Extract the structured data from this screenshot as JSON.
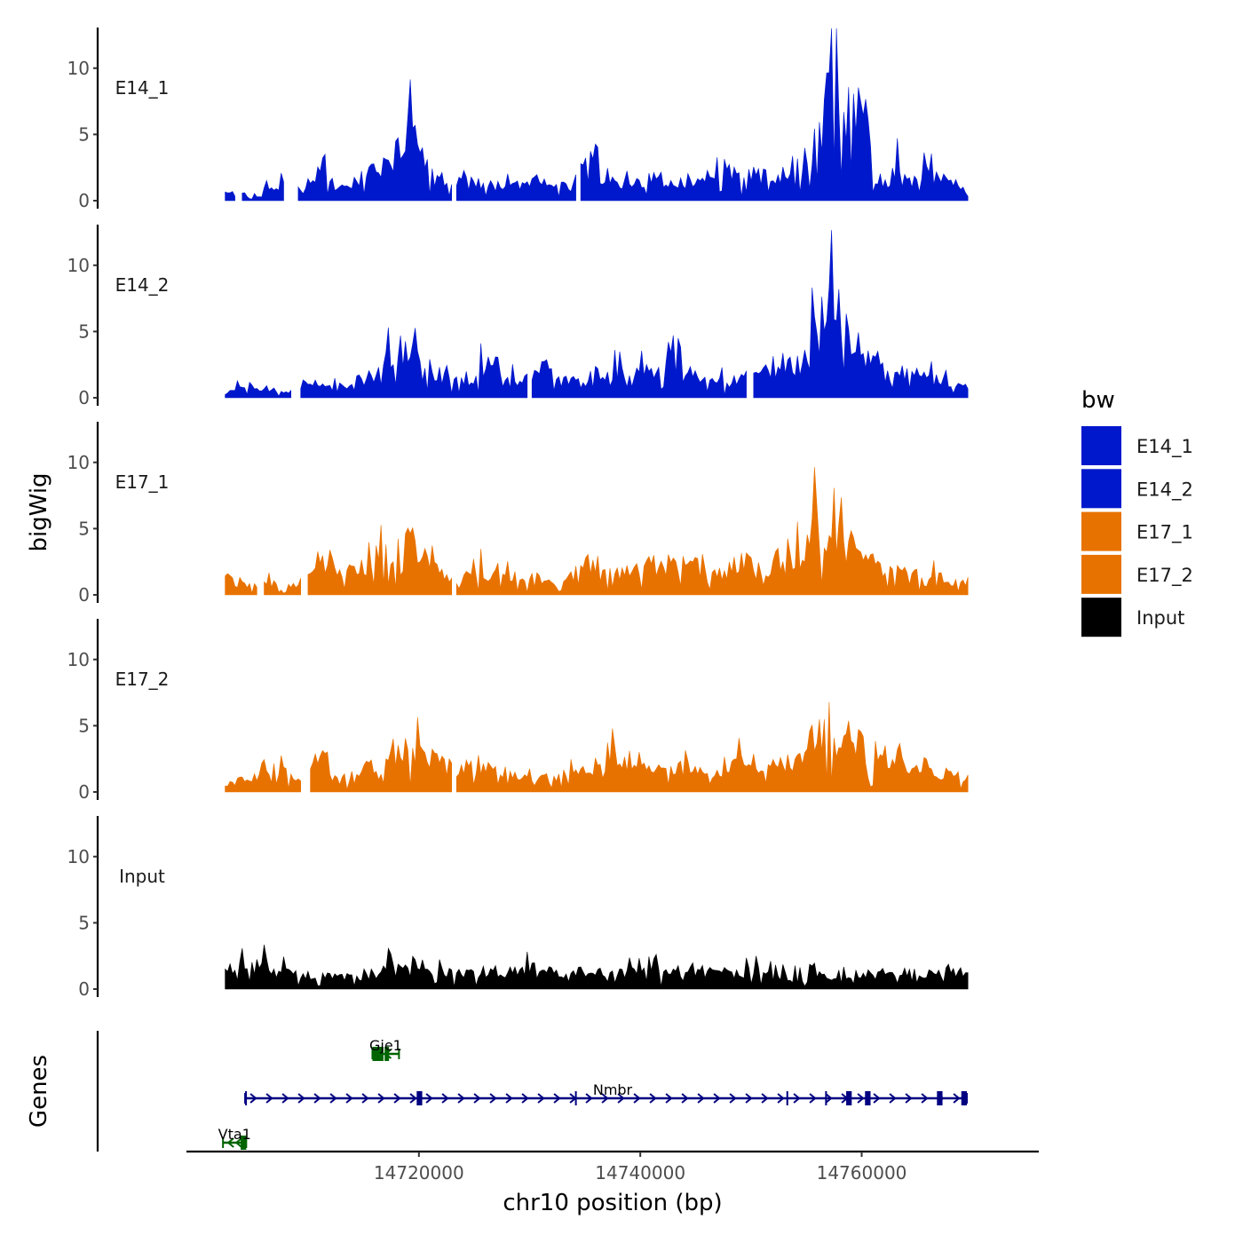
{
  "chart_data": {
    "type": "area",
    "title": "",
    "ylabel": "bigWig",
    "genes_label": "Genes",
    "xlabel": "chr10 position (bp)",
    "xlim": [
      14699000,
      14776000
    ],
    "ylim": [
      0,
      13
    ],
    "x_ticks": [
      14720000,
      14740000,
      14760000
    ],
    "x_tick_labels": [
      "14720000",
      "14740000",
      "14760000"
    ],
    "y_ticks": [
      0,
      5,
      10
    ],
    "y_tick_labels": [
      "0",
      "5",
      "10"
    ],
    "signal_range": [
      14702500,
      14769800
    ],
    "legend": {
      "title": "bw",
      "position": "right",
      "entries": [
        {
          "label": "E14_1",
          "color": "#0018CC"
        },
        {
          "label": "E14_2",
          "color": "#0018CC"
        },
        {
          "label": "E17_1",
          "color": "#E87200"
        },
        {
          "label": "E17_2",
          "color": "#E87200"
        },
        {
          "label": "Input",
          "color": "#000000"
        }
      ]
    },
    "tracks": [
      {
        "name": "E14_1",
        "color": "#0018CC",
        "gaps": [
          [
            14703500,
            14704000
          ],
          [
            14707800,
            14709000
          ],
          [
            14723000,
            14723300
          ],
          [
            14734300,
            14734600
          ]
        ],
        "anchors": [
          [
            14702500,
            0.6
          ],
          [
            14704500,
            0.5
          ],
          [
            14705800,
            1.0
          ],
          [
            14706600,
            1.5
          ],
          [
            14708500,
            1.2
          ],
          [
            14709500,
            0.8
          ],
          [
            14710700,
            1.5
          ],
          [
            14711300,
            4.1
          ],
          [
            14712500,
            0.8
          ],
          [
            14714300,
            1.5
          ],
          [
            14715500,
            2.2
          ],
          [
            14716700,
            3.0
          ],
          [
            14718000,
            4.0
          ],
          [
            14719200,
            5.4
          ],
          [
            14720500,
            3.1
          ],
          [
            14721700,
            2.5
          ],
          [
            14722800,
            1.3
          ],
          [
            14723800,
            2.0
          ],
          [
            14725500,
            1.4
          ],
          [
            14727000,
            1.2
          ],
          [
            14729000,
            1.5
          ],
          [
            14730800,
            1.8
          ],
          [
            14732200,
            1.5
          ],
          [
            14734000,
            1.2
          ],
          [
            14735000,
            3.5
          ],
          [
            14737000,
            1.5
          ],
          [
            14739000,
            1.4
          ],
          [
            14741000,
            2.0
          ],
          [
            14743000,
            1.4
          ],
          [
            14745000,
            1.8
          ],
          [
            14746500,
            3.0
          ],
          [
            14748000,
            2.5
          ],
          [
            14750500,
            2.0
          ],
          [
            14752500,
            1.8
          ],
          [
            14754500,
            3.5
          ],
          [
            14756000,
            5.5
          ],
          [
            14756600,
            6.8
          ],
          [
            14757300,
            13.0
          ],
          [
            14758000,
            9.6
          ],
          [
            14758700,
            7.8
          ],
          [
            14759300,
            6.5
          ],
          [
            14760300,
            9.0
          ],
          [
            14761100,
            2.0
          ],
          [
            14762300,
            1.5
          ],
          [
            14763200,
            3.1
          ],
          [
            14764500,
            1.5
          ],
          [
            14766000,
            2.4
          ],
          [
            14767500,
            1.6
          ],
          [
            14769000,
            1.2
          ],
          [
            14769800,
            0.9
          ]
        ]
      },
      {
        "name": "E14_2",
        "color": "#0018CC",
        "gaps": [
          [
            14708500,
            14709200
          ],
          [
            14729800,
            14730100
          ],
          [
            14749800,
            14750200
          ]
        ],
        "anchors": [
          [
            14702500,
            0.6
          ],
          [
            14704500,
            1.0
          ],
          [
            14706500,
            0.8
          ],
          [
            14708000,
            0.4
          ],
          [
            14710000,
            1.3
          ],
          [
            14711500,
            0.8
          ],
          [
            14713500,
            1.1
          ],
          [
            14715000,
            1.6
          ],
          [
            14716500,
            2.3
          ],
          [
            14718000,
            4.0
          ],
          [
            14719500,
            3.5
          ],
          [
            14720800,
            2.6
          ],
          [
            14722500,
            1.5
          ],
          [
            14724500,
            1.3
          ],
          [
            14726500,
            3.2
          ],
          [
            14728500,
            1.4
          ],
          [
            14730800,
            2.5
          ],
          [
            14732500,
            1.5
          ],
          [
            14734800,
            1.3
          ],
          [
            14736800,
            2.4
          ],
          [
            14738800,
            2.0
          ],
          [
            14741000,
            2.2
          ],
          [
            14742800,
            4.5
          ],
          [
            14744800,
            1.8
          ],
          [
            14747000,
            1.2
          ],
          [
            14749000,
            1.6
          ],
          [
            14751500,
            2.3
          ],
          [
            14753000,
            3.0
          ],
          [
            14754500,
            2.5
          ],
          [
            14755800,
            7.8
          ],
          [
            14756600,
            8.0
          ],
          [
            14757200,
            11.5
          ],
          [
            14757900,
            6.5
          ],
          [
            14758500,
            7.3
          ],
          [
            14759300,
            5.0
          ],
          [
            14760500,
            3.0
          ],
          [
            14762500,
            1.8
          ],
          [
            14764500,
            2.2
          ],
          [
            14766500,
            1.5
          ],
          [
            14768500,
            1.0
          ],
          [
            14769800,
            0.8
          ]
        ]
      },
      {
        "name": "E17_1",
        "color": "#E87200",
        "gaps": [
          [
            14705500,
            14705800
          ],
          [
            14709500,
            14709900
          ],
          [
            14723000,
            14723300
          ]
        ],
        "anchors": [
          [
            14702500,
            1.0
          ],
          [
            14704500,
            0.8
          ],
          [
            14706500,
            1.0
          ],
          [
            14708500,
            0.8
          ],
          [
            14710500,
            1.6
          ],
          [
            14711800,
            3.0
          ],
          [
            14713000,
            1.7
          ],
          [
            14714500,
            2.0
          ],
          [
            14716000,
            3.0
          ],
          [
            14717500,
            3.5
          ],
          [
            14719000,
            4.6
          ],
          [
            14720500,
            3.0
          ],
          [
            14721500,
            2.2
          ],
          [
            14723500,
            1.3
          ],
          [
            14725500,
            2.0
          ],
          [
            14727500,
            1.6
          ],
          [
            14729500,
            1.5
          ],
          [
            14731500,
            1.4
          ],
          [
            14733500,
            1.3
          ],
          [
            14735500,
            2.9
          ],
          [
            14737500,
            2.0
          ],
          [
            14739500,
            2.0
          ],
          [
            14741500,
            2.5
          ],
          [
            14743500,
            2.6
          ],
          [
            14745500,
            1.8
          ],
          [
            14747500,
            1.6
          ],
          [
            14749000,
            2.7
          ],
          [
            14750500,
            2.5
          ],
          [
            14752500,
            2.0
          ],
          [
            14754500,
            3.5
          ],
          [
            14755800,
            5.6
          ],
          [
            14756700,
            5.4
          ],
          [
            14757500,
            5.0
          ],
          [
            14758500,
            4.0
          ],
          [
            14759800,
            4.5
          ],
          [
            14761500,
            2.5
          ],
          [
            14763000,
            2.0
          ],
          [
            14765000,
            1.7
          ],
          [
            14767000,
            1.4
          ],
          [
            14769000,
            1.0
          ],
          [
            14769800,
            1.2
          ]
        ]
      },
      {
        "name": "E17_2",
        "color": "#E87200",
        "gaps": [
          [
            14709500,
            14710000
          ],
          [
            14723000,
            14723300
          ]
        ],
        "anchors": [
          [
            14702500,
            0.5
          ],
          [
            14704000,
            1.0
          ],
          [
            14706000,
            1.6
          ],
          [
            14707500,
            2.3
          ],
          [
            14709000,
            0.8
          ],
          [
            14710500,
            2.3
          ],
          [
            14711300,
            3.9
          ],
          [
            14712300,
            0.8
          ],
          [
            14714500,
            1.5
          ],
          [
            14716500,
            2.8
          ],
          [
            14718000,
            3.5
          ],
          [
            14719500,
            3.7
          ],
          [
            14721500,
            2.7
          ],
          [
            14723500,
            1.7
          ],
          [
            14725500,
            2.3
          ],
          [
            14727500,
            1.6
          ],
          [
            14729500,
            1.2
          ],
          [
            14731500,
            1.2
          ],
          [
            14733500,
            1.4
          ],
          [
            14735500,
            1.9
          ],
          [
            14737500,
            3.0
          ],
          [
            14739000,
            2.6
          ],
          [
            14741000,
            2.7
          ],
          [
            14743000,
            2.1
          ],
          [
            14745000,
            2.0
          ],
          [
            14747000,
            1.3
          ],
          [
            14748500,
            2.5
          ],
          [
            14750000,
            2.5
          ],
          [
            14752000,
            2.3
          ],
          [
            14754000,
            2.5
          ],
          [
            14755700,
            4.5
          ],
          [
            14756800,
            5.8
          ],
          [
            14757800,
            4.4
          ],
          [
            14758800,
            4.5
          ],
          [
            14760300,
            3.4
          ],
          [
            14762000,
            3.0
          ],
          [
            14763800,
            2.6
          ],
          [
            14765800,
            1.8
          ],
          [
            14767800,
            1.5
          ],
          [
            14769800,
            1.2
          ]
        ]
      },
      {
        "name": "Input",
        "color": "#000000",
        "gaps": [],
        "anchors": [
          [
            14702500,
            1.6
          ],
          [
            14704000,
            2.0
          ],
          [
            14705700,
            2.6
          ],
          [
            14706800,
            1.6
          ],
          [
            14708500,
            1.2
          ],
          [
            14710500,
            1.3
          ],
          [
            14712500,
            1.0
          ],
          [
            14714500,
            1.0
          ],
          [
            14716500,
            1.4
          ],
          [
            14718000,
            1.6
          ],
          [
            14720500,
            1.4
          ],
          [
            14722500,
            1.3
          ],
          [
            14724500,
            1.2
          ],
          [
            14726500,
            1.5
          ],
          [
            14728500,
            1.5
          ],
          [
            14730500,
            1.6
          ],
          [
            14732500,
            1.3
          ],
          [
            14734500,
            1.4
          ],
          [
            14736500,
            1.4
          ],
          [
            14738500,
            1.3
          ],
          [
            14740500,
            1.7
          ],
          [
            14742500,
            1.5
          ],
          [
            14744500,
            1.4
          ],
          [
            14746500,
            1.5
          ],
          [
            14748500,
            1.4
          ],
          [
            14750500,
            1.5
          ],
          [
            14752500,
            1.6
          ],
          [
            14754500,
            1.6
          ],
          [
            14756500,
            1.3
          ],
          [
            14758500,
            1.1
          ],
          [
            14760500,
            1.3
          ],
          [
            14762500,
            1.3
          ],
          [
            14764500,
            1.4
          ],
          [
            14766500,
            1.3
          ],
          [
            14768500,
            1.3
          ],
          [
            14769800,
            1.3
          ]
        ],
        "peaks": [
          [
            14706200,
            3.4
          ],
          [
            14717300,
            2.8
          ],
          [
            14730500,
            3.0
          ],
          [
            14741300,
            2.5
          ],
          [
            14743300,
            2.5
          ],
          [
            14752000,
            2.3
          ],
          [
            14755300,
            2.4
          ]
        ]
      }
    ],
    "genes": [
      {
        "name": "Nmbr",
        "color": "#000080",
        "strand": "+",
        "row": "middle",
        "start": 14704300,
        "end": 14769500,
        "exons": [
          [
            14704300,
            14704400
          ],
          [
            14719800,
            14720300
          ],
          [
            14734100,
            14734200
          ],
          [
            14753200,
            14753300
          ],
          [
            14756700,
            14756800
          ],
          [
            14758600,
            14759100
          ],
          [
            14760300,
            14760800
          ],
          [
            14766800,
            14767300
          ],
          [
            14769000,
            14769500
          ]
        ]
      },
      {
        "name": "Gje1",
        "color": "#006400",
        "strand": "-",
        "row": "top",
        "start": 14715800,
        "end": 14718200,
        "exons": [
          [
            14715800,
            14716800
          ],
          [
            14716900,
            14717300
          ]
        ]
      },
      {
        "name": "Vta1",
        "color": "#006400",
        "strand": "-",
        "row": "bottom",
        "start": 14702300,
        "end": 14704400,
        "exons": [
          [
            14703900,
            14704400
          ]
        ]
      }
    ]
  }
}
